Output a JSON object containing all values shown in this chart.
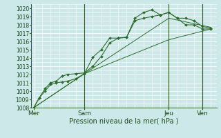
{
  "title": "",
  "xlabel": "Pression niveau de la mer( hPa )",
  "bg_color": "#cce8e8",
  "line_color": "#2d6b2d",
  "ylim": [
    1008,
    1020.5
  ],
  "ytick_min": 1008,
  "ytick_max": 1020,
  "xlim": [
    -2,
    130
  ],
  "series1": {
    "x": [
      0,
      4,
      8,
      12,
      16,
      20,
      24,
      30,
      36,
      42,
      48,
      54,
      60,
      66,
      72,
      78,
      84,
      90,
      96,
      102,
      108,
      114,
      120,
      126
    ],
    "y": [
      1008.0,
      1009.2,
      1010.0,
      1010.8,
      1011.0,
      1011.1,
      1011.2,
      1011.5,
      1012.1,
      1014.1,
      1015.0,
      1016.4,
      1016.4,
      1016.5,
      1018.5,
      1018.8,
      1019.0,
      1019.2,
      1019.5,
      1018.8,
      1018.0,
      1018.0,
      1017.5,
      1017.5
    ]
  },
  "series2": {
    "x": [
      0,
      4,
      8,
      12,
      16,
      20,
      24,
      30,
      36,
      42,
      48,
      54,
      60,
      66,
      72,
      78,
      84,
      90,
      96,
      102,
      108,
      114,
      120,
      126
    ],
    "y": [
      1008.0,
      1009.2,
      1010.3,
      1011.0,
      1011.2,
      1011.8,
      1012.0,
      1012.1,
      1012.2,
      1013.0,
      1014.2,
      1015.8,
      1016.4,
      1016.5,
      1018.8,
      1019.5,
      1019.8,
      1019.2,
      1019.5,
      1018.8,
      1018.8,
      1018.5,
      1017.8,
      1017.6
    ]
  },
  "series3": {
    "x": [
      0,
      36,
      96,
      126
    ],
    "y": [
      1008.0,
      1012.1,
      1016.2,
      1017.5
    ]
  },
  "series4": {
    "x": [
      0,
      36,
      96,
      126
    ],
    "y": [
      1008.0,
      1012.1,
      1018.8,
      1017.7
    ]
  },
  "vline_positions": [
    36,
    96,
    120
  ],
  "xtick_positions": [
    0,
    36,
    96,
    120
  ],
  "xtick_labels": [
    "Mer",
    "Sam",
    "Jeu",
    "Ven"
  ]
}
